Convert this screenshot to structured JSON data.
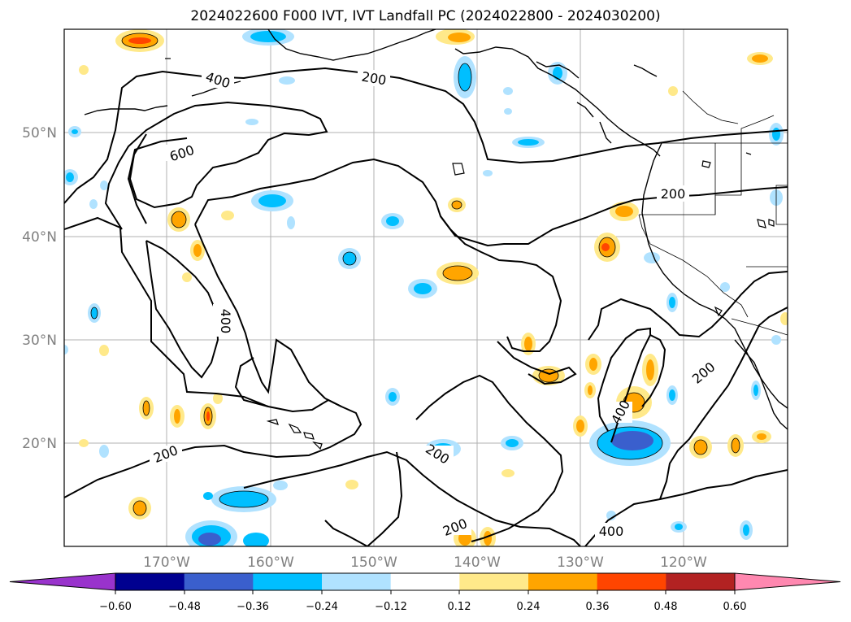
{
  "title": "2024022600 F000 IVT, IVT Landfall PC (2024022800 - 2024030200)",
  "axes": {
    "lon_ticks": [
      "170°W",
      "160°W",
      "150°W",
      "140°W",
      "130°W",
      "120°W"
    ],
    "lat_ticks": [
      "50°N",
      "40°N",
      "30°N",
      "20°N"
    ]
  },
  "colorbar": {
    "ticks": [
      "−0.60",
      "−0.48",
      "−0.36",
      "−0.24",
      "−0.12",
      "0.12",
      "0.24",
      "0.36",
      "0.48",
      "0.60"
    ],
    "colors": [
      "#9933cc",
      "#000090",
      "#3a5fcd",
      "#00bfff",
      "#b0e2ff",
      "#ffffff",
      "#ffe98a",
      "#ffa500",
      "#ff4500",
      "#b22222",
      "#ff88b0"
    ]
  },
  "contour_labels": [
    {
      "id": "c-400-a",
      "text": "400"
    },
    {
      "id": "c-200-a",
      "text": "200"
    },
    {
      "id": "c-600",
      "text": "600"
    },
    {
      "id": "c-200-b",
      "text": "200"
    },
    {
      "id": "c-400-b",
      "text": "400"
    },
    {
      "id": "c-200-c",
      "text": "200"
    },
    {
      "id": "c-200-d",
      "text": "200"
    },
    {
      "id": "c-200-e",
      "text": "200"
    },
    {
      "id": "c-400-c",
      "text": "400"
    },
    {
      "id": "c-200-f",
      "text": "200"
    },
    {
      "id": "c-400-d",
      "text": "400"
    }
  ]
}
